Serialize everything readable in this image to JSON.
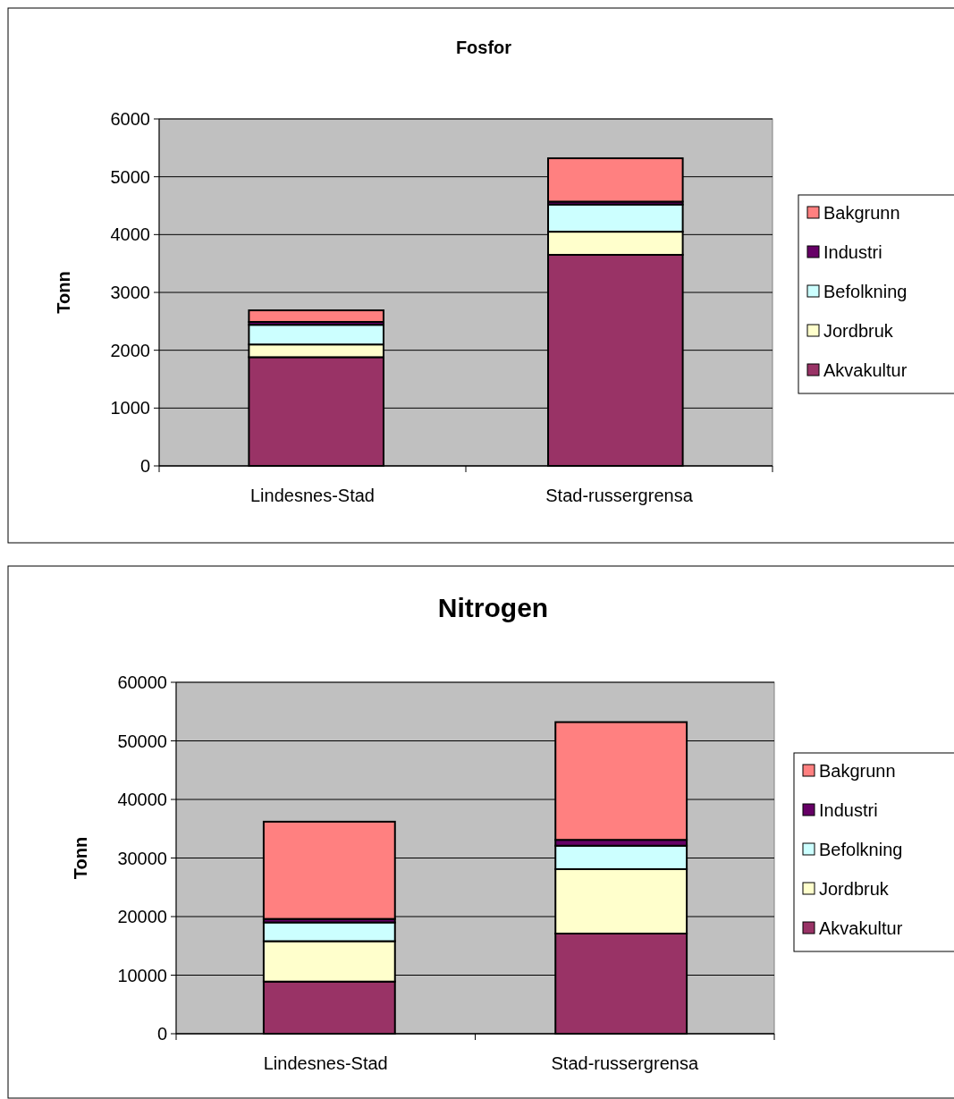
{
  "chart_data": [
    {
      "type": "bar",
      "title": "Fosfor",
      "ylabel": "Tonn",
      "categories": [
        "Lindesnes-Stad",
        "Stad-russergrensa"
      ],
      "stacked": true,
      "ylim": [
        0,
        6000
      ],
      "yticks": [
        0,
        1000,
        2000,
        3000,
        4000,
        5000,
        6000
      ],
      "grid": "y",
      "legend": "right",
      "series": [
        {
          "name": "Akvakultur",
          "color": "#993366",
          "values": [
            1880,
            3650
          ]
        },
        {
          "name": "Jordbruk",
          "color": "#ffffcc",
          "values": [
            220,
            400
          ]
        },
        {
          "name": "Befolkning",
          "color": "#ccffff",
          "values": [
            340,
            470
          ]
        },
        {
          "name": "Industri",
          "color": "#660066",
          "values": [
            50,
            50
          ]
        },
        {
          "name": "Bakgrunn",
          "color": "#ff8080",
          "values": [
            200,
            750
          ]
        }
      ]
    },
    {
      "type": "bar",
      "title": "Nitrogen",
      "ylabel": "Tonn",
      "categories": [
        "Lindesnes-Stad",
        "Stad-russergrensa"
      ],
      "stacked": true,
      "ylim": [
        0,
        60000
      ],
      "yticks": [
        0,
        10000,
        20000,
        30000,
        40000,
        50000,
        60000
      ],
      "grid": "y",
      "legend": "right",
      "series": [
        {
          "name": "Akvakultur",
          "color": "#993366",
          "values": [
            8900,
            17100
          ]
        },
        {
          "name": "Jordbruk",
          "color": "#ffffcc",
          "values": [
            6900,
            11000
          ]
        },
        {
          "name": "Befolkning",
          "color": "#ccffff",
          "values": [
            3200,
            4000
          ]
        },
        {
          "name": "Industri",
          "color": "#660066",
          "values": [
            600,
            1000
          ]
        },
        {
          "name": "Bakgrunn",
          "color": "#ff8080",
          "values": [
            16600,
            20100
          ]
        }
      ]
    }
  ]
}
